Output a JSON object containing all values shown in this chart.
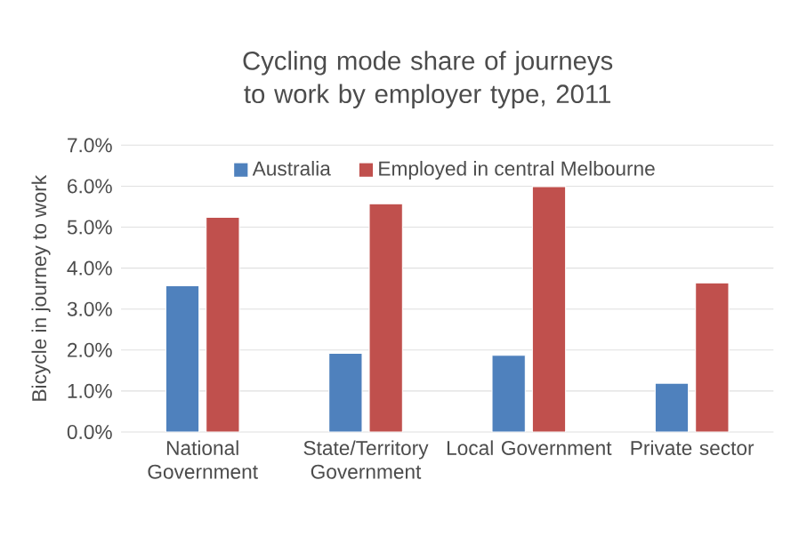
{
  "chart_data": {
    "type": "bar",
    "title": "Cycling mode share of journeys to work by employer type, 2011",
    "ylabel": "Bicycle in journey to work",
    "categories": [
      "National Government",
      "State/Territory Government",
      "Local Government",
      "Private sector"
    ],
    "series": [
      {
        "name": "Australia",
        "color": "#4f81bd",
        "values": [
          3.57,
          1.92,
          1.87,
          1.19
        ]
      },
      {
        "name": "Employed in central Melbourne",
        "color": "#c0504d",
        "values": [
          5.24,
          5.57,
          5.99,
          3.64
        ]
      }
    ],
    "ylim": [
      0,
      7
    ],
    "yticks": [
      {
        "value": 0,
        "label": "0.0%"
      },
      {
        "value": 1,
        "label": "1.0%"
      },
      {
        "value": 2,
        "label": "2.0%"
      },
      {
        "value": 3,
        "label": "3.0%"
      },
      {
        "value": 4,
        "label": "4.0%"
      },
      {
        "value": 5,
        "label": "5.0%"
      },
      {
        "value": 6,
        "label": "6.0%"
      },
      {
        "value": 7,
        "label": "7.0%"
      }
    ],
    "grid": "y",
    "legend": "top"
  }
}
